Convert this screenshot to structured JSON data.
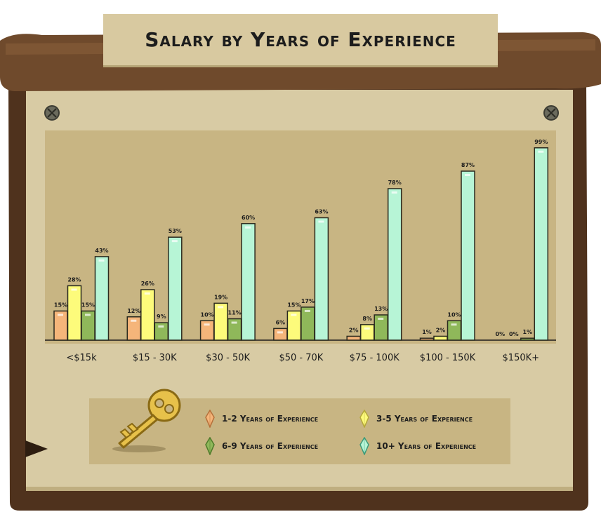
{
  "title": "Salary by Years of Experience",
  "colors": {
    "frame_dark": "#5a3a22",
    "frame_mid": "#6f4a2c",
    "board": "#d8cba4",
    "plot_area": "#c8b583",
    "series": [
      "#f5b57a",
      "#fdfb7b",
      "#8fb85a",
      "#b7f5d6"
    ]
  },
  "legend": [
    {
      "label": "1-2 Years of Experience",
      "icon": "orange-gem-icon"
    },
    {
      "label": "3-5 Years of Experience",
      "icon": "yellow-gem-icon"
    },
    {
      "label": "6-9 Years of Experience",
      "icon": "green-gem-icon"
    },
    {
      "label": "10+ Years of Experience",
      "icon": "teal-gem-icon"
    }
  ],
  "chart_data": {
    "type": "bar",
    "title": "Salary by Years of Experience",
    "categories": [
      "<$15k",
      "$15 - 30K",
      "$30 - 50K",
      "$50 - 70K",
      "$75 - 100K",
      "$100 - 150K",
      "$150K+"
    ],
    "series": [
      {
        "name": "1-2 Years of Experience",
        "values": [
          15,
          12,
          10,
          6,
          2,
          1,
          0
        ]
      },
      {
        "name": "3-5 Years of Experience",
        "values": [
          28,
          26,
          19,
          15,
          8,
          2,
          0
        ]
      },
      {
        "name": "6-9 Years of Experience",
        "values": [
          15,
          9,
          11,
          17,
          13,
          10,
          1
        ]
      },
      {
        "name": "10+ Years of Experience",
        "values": [
          43,
          53,
          60,
          63,
          78,
          87,
          99
        ]
      }
    ],
    "value_suffix": "%",
    "ylim": [
      0,
      100
    ],
    "grid": false,
    "legend_position": "bottom"
  }
}
